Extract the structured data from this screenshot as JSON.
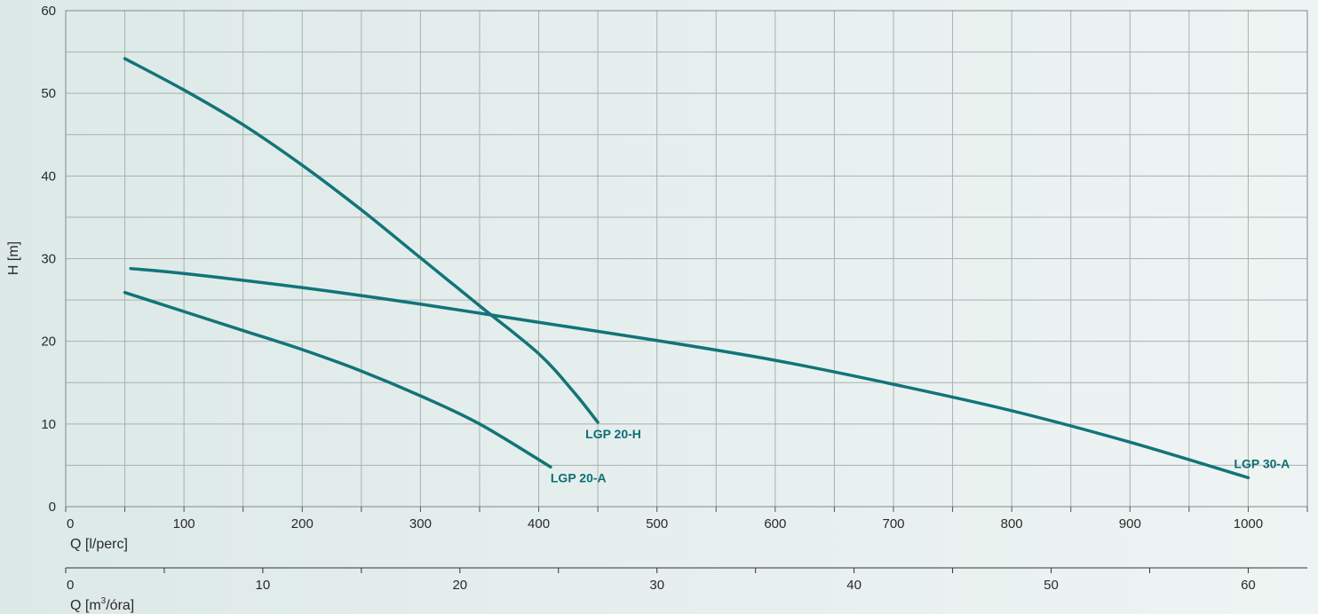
{
  "chart_data": {
    "type": "line",
    "xlabel": "Q [l/perc]",
    "ylabel": "H [m]",
    "xlim": [
      0,
      1050
    ],
    "ylim": [
      0,
      60
    ],
    "x_ticks": [
      0,
      100,
      200,
      300,
      400,
      500,
      600,
      700,
      800,
      900,
      1000
    ],
    "y_ticks": [
      0,
      10,
      20,
      30,
      40,
      50,
      60
    ],
    "grid": true,
    "secondary_axis": {
      "label_prefix": "Q [m",
      "label_sup": "3",
      "label_suffix": "/óra]",
      "lim": [
        0,
        63
      ],
      "ticks": [
        0,
        10,
        20,
        30,
        40,
        50,
        60
      ]
    },
    "series": [
      {
        "name": "LGP 20-H",
        "points": [
          [
            50,
            54.2
          ],
          [
            100,
            50.4
          ],
          [
            150,
            46.2
          ],
          [
            200,
            41.3
          ],
          [
            250,
            35.9
          ],
          [
            300,
            30.1
          ],
          [
            350,
            24.3
          ],
          [
            400,
            18.5
          ],
          [
            430,
            13.8
          ],
          [
            450,
            10.2
          ]
        ]
      },
      {
        "name": "LGP 20-A",
        "points": [
          [
            50,
            25.9
          ],
          [
            100,
            23.6
          ],
          [
            150,
            21.3
          ],
          [
            200,
            19.0
          ],
          [
            250,
            16.4
          ],
          [
            300,
            13.4
          ],
          [
            350,
            10.0
          ],
          [
            410,
            4.8
          ]
        ]
      },
      {
        "name": "LGP 30-A",
        "points": [
          [
            55,
            28.8
          ],
          [
            100,
            28.2
          ],
          [
            200,
            26.5
          ],
          [
            300,
            24.5
          ],
          [
            400,
            22.3
          ],
          [
            500,
            20.1
          ],
          [
            600,
            17.7
          ],
          [
            700,
            14.8
          ],
          [
            800,
            11.6
          ],
          [
            900,
            7.8
          ],
          [
            1000,
            3.5
          ]
        ]
      }
    ],
    "line_color": "#127479"
  }
}
